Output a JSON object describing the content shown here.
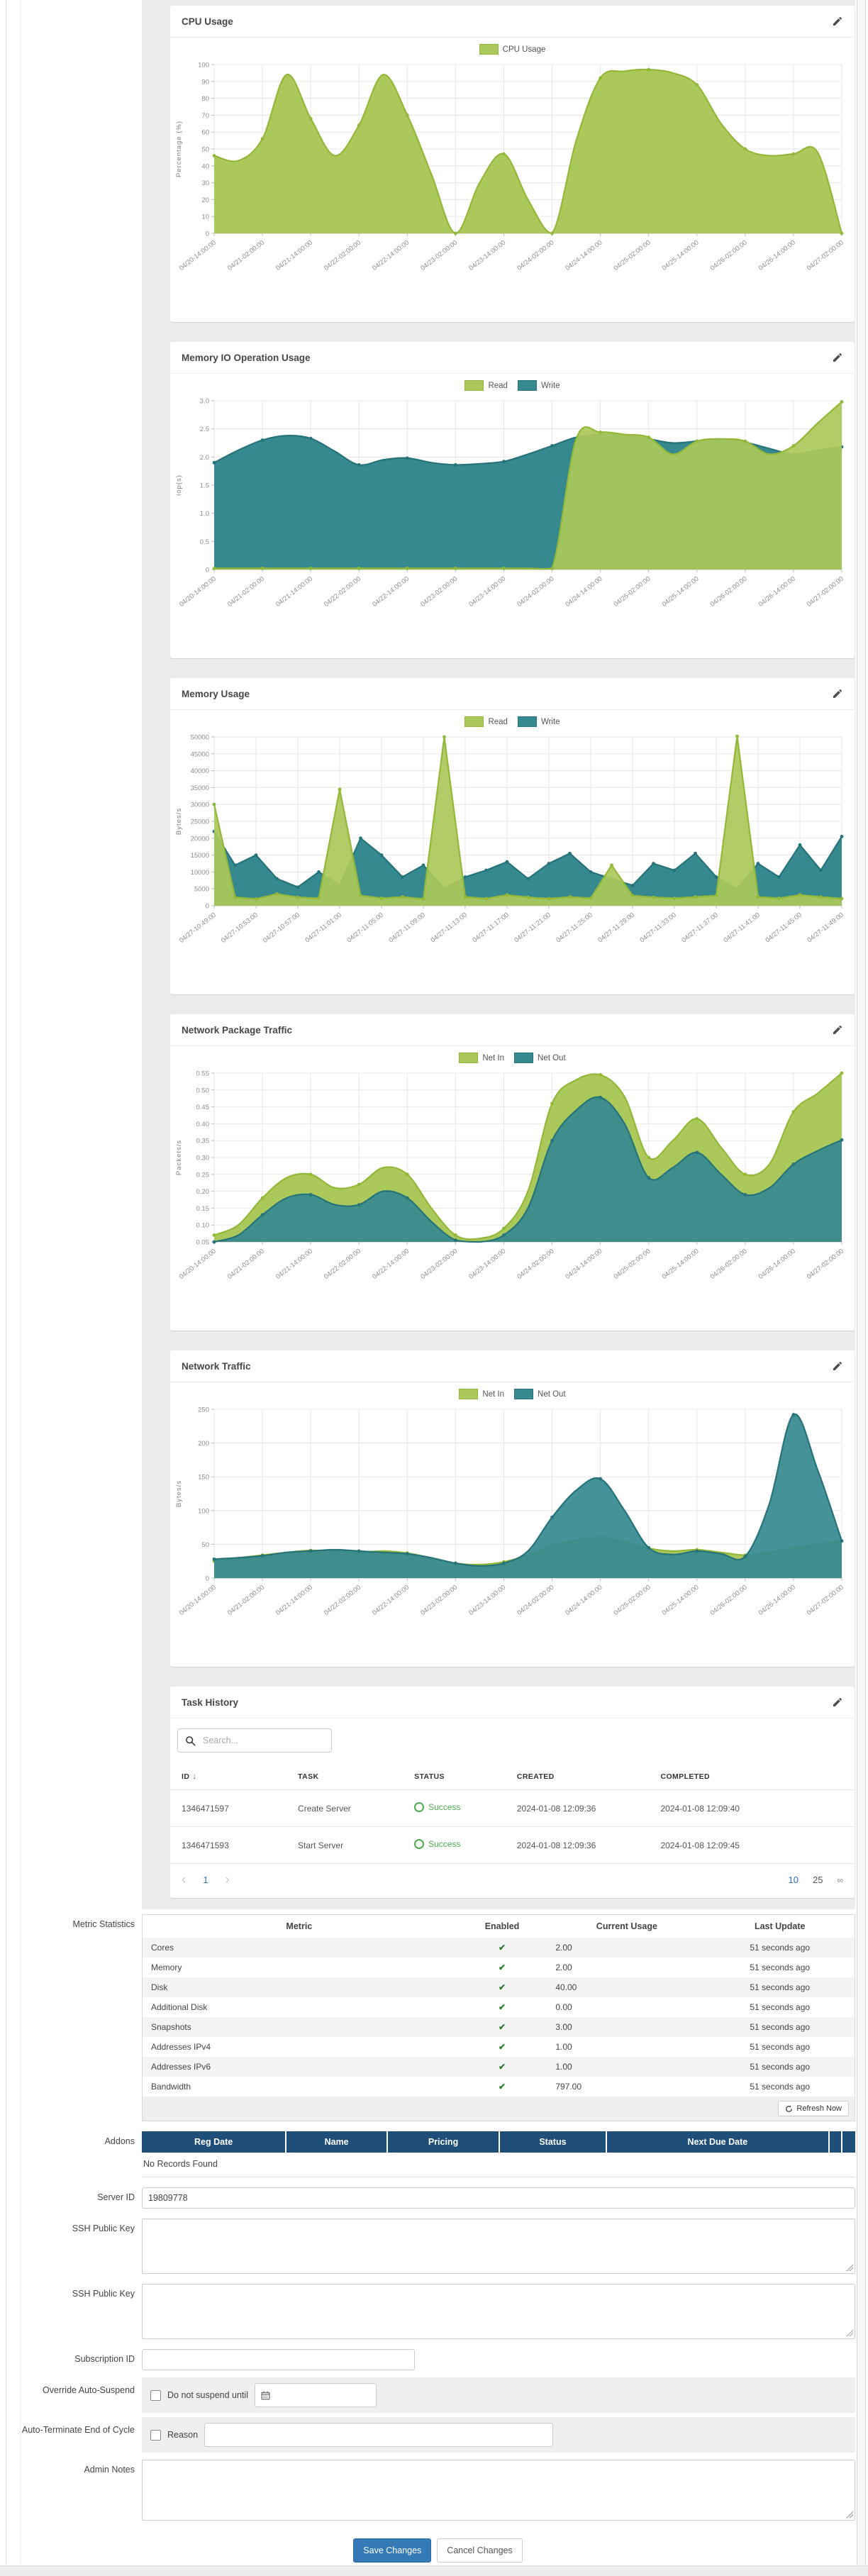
{
  "colors": {
    "green_fill": "#abc95b",
    "green_stroke": "#93b838",
    "teal_fill": "#35898f",
    "teal_stroke": "#26747a",
    "link_blue": "#2f6fc2",
    "button_blue": "#337ab7",
    "success_green": "#4cae4c",
    "addons_header_blue": "#1f4e79",
    "check_green": "#2a7d2e"
  },
  "chart_data": [
    {
      "type": "area",
      "title": "CPU Usage",
      "ylabel": "Percentage (%)",
      "ylim": [
        0,
        100
      ],
      "yticks": [
        [
          0,
          "0"
        ],
        [
          10,
          "10"
        ],
        [
          20,
          "20"
        ],
        [
          30,
          "30"
        ],
        [
          40,
          "40"
        ],
        [
          50,
          "50"
        ],
        [
          60,
          "60"
        ],
        [
          70,
          "70"
        ],
        [
          80,
          "80"
        ],
        [
          90,
          "90"
        ],
        [
          100,
          "100"
        ]
      ],
      "categories": [
        "04/20-14:00:00",
        "04/21-02:00:00",
        "04/21-14:00:00",
        "04/22-02:00:00",
        "04/22-14:00:00",
        "04/23-02:00:00",
        "04/23-14:00:00",
        "04/24-02:00:00",
        "04/24-14:00:00",
        "04/25-02:00:00",
        "04/25-14:00:00",
        "04/26-02:00:00",
        "04/26-14:00:00",
        "04/27-02:00:00"
      ],
      "smooth": true,
      "dot_every": 2,
      "draw_order": [
        0
      ],
      "grid": true,
      "legend_position": "top",
      "series": [
        {
          "name": "CPU Usage",
          "color": "green",
          "values": [
            46,
            43,
            56,
            94,
            68,
            46,
            64,
            94,
            70,
            35,
            0,
            30,
            47,
            20,
            0,
            55,
            92,
            96,
            97,
            95,
            88,
            65,
            50,
            46,
            47,
            48,
            0
          ]
        }
      ]
    },
    {
      "type": "area",
      "title": "Memory IO Operation Usage",
      "ylabel": "iop(s)",
      "ylim": [
        0,
        3
      ],
      "yticks": [
        [
          0,
          "0"
        ],
        [
          0.5,
          "0.5"
        ],
        [
          1,
          "1.0"
        ],
        [
          1.5,
          "1.5"
        ],
        [
          2,
          "2.0"
        ],
        [
          2.5,
          "2.5"
        ],
        [
          3,
          "3.0"
        ]
      ],
      "categories": [
        "04/20-14:00:00",
        "04/21-02:00:00",
        "04/21-14:00:00",
        "04/22-02:00:00",
        "04/22-14:00:00",
        "04/23-02:00:00",
        "04/23-14:00:00",
        "04/24-02:00:00",
        "04/24-14:00:00",
        "04/25-02:00:00",
        "04/25-14:00:00",
        "04/26-02:00:00",
        "04/26-14:00:00",
        "04/27-02:00:00"
      ],
      "smooth": true,
      "dot_every": 2,
      "draw_order": [
        1,
        0
      ],
      "grid": true,
      "legend_position": "top",
      "series": [
        {
          "name": "Read",
          "color": "green",
          "values": [
            0.02,
            0.02,
            0.02,
            0.02,
            0.02,
            0.02,
            0.02,
            0.02,
            0.02,
            0.02,
            0.02,
            0.02,
            0.02,
            0.02,
            0.02,
            2.32,
            2.44,
            2.4,
            2.35,
            2.05,
            2.28,
            2.32,
            2.28,
            2.05,
            2.2,
            2.6,
            2.98
          ]
        },
        {
          "name": "Write",
          "color": "teal",
          "values": [
            1.9,
            2.12,
            2.3,
            2.38,
            2.33,
            2.1,
            1.86,
            1.95,
            1.98,
            1.9,
            1.86,
            1.88,
            1.92,
            2.05,
            2.2,
            2.35,
            2.4,
            2.38,
            2.32,
            2.25,
            2.28,
            2.3,
            2.26,
            2.15,
            2.05,
            2.12,
            2.18
          ]
        }
      ]
    },
    {
      "type": "area",
      "title": "Memory Usage",
      "ylabel": "Bytes/s",
      "ylim": [
        0,
        50000
      ],
      "yticks": [
        [
          0,
          "0"
        ],
        [
          5000,
          "5000"
        ],
        [
          10000,
          "10000"
        ],
        [
          15000,
          "15000"
        ],
        [
          20000,
          "20000"
        ],
        [
          25000,
          "25000"
        ],
        [
          30000,
          "30000"
        ],
        [
          35000,
          "35000"
        ],
        [
          40000,
          "40000"
        ],
        [
          45000,
          "45000"
        ],
        [
          50000,
          "50000"
        ]
      ],
      "categories": [
        "04/27-10:49:00",
        "04/27-10:53:00",
        "04/27-10:57:00",
        "04/27-11:01:00",
        "04/27-11:05:00",
        "04/27-11:09:00",
        "04/27-11:13:00",
        "04/27-11:17:00",
        "04/27-11:21:00",
        "04/27-11:25:00",
        "04/27-11:29:00",
        "04/27-11:33:00",
        "04/27-11:37:00",
        "04/27-11:41:00",
        "04/27-11:45:00",
        "04/27-11:49:00"
      ],
      "smooth": false,
      "dot_every": 1,
      "draw_order": [
        1,
        0
      ],
      "grid": true,
      "legend_position": "top",
      "series": [
        {
          "name": "Read",
          "color": "green",
          "values": [
            30000,
            2500,
            2000,
            3500,
            2500,
            2200,
            34500,
            3000,
            2200,
            2600,
            2000,
            50000,
            2600,
            2100,
            3200,
            2500,
            2100,
            2600,
            2200,
            12000,
            3000,
            2500,
            2200,
            2600,
            3000,
            50200,
            2600,
            2200,
            3200,
            2600,
            2100
          ]
        },
        {
          "name": "Write",
          "color": "teal",
          "values": [
            22000,
            12000,
            15000,
            8000,
            5500,
            10000,
            6000,
            20000,
            15000,
            8500,
            12000,
            5000,
            8500,
            10500,
            13000,
            8000,
            12500,
            15500,
            10000,
            8000,
            6000,
            12500,
            10500,
            15500,
            8500,
            5000,
            12500,
            8500,
            18000,
            10500,
            20500
          ]
        }
      ]
    },
    {
      "type": "area",
      "title": "Network Package Traffic",
      "ylabel": "Packets/s",
      "ylim": [
        0.05,
        0.55
      ],
      "yticks": [
        [
          0.05,
          "0.05"
        ],
        [
          0.1,
          "0.10"
        ],
        [
          0.15,
          "0.15"
        ],
        [
          0.2,
          "0.20"
        ],
        [
          0.25,
          "0.25"
        ],
        [
          0.3,
          "0.30"
        ],
        [
          0.35,
          "0.35"
        ],
        [
          0.4,
          "0.40"
        ],
        [
          0.45,
          "0.45"
        ],
        [
          0.5,
          "0.50"
        ],
        [
          0.55,
          "0.55"
        ]
      ],
      "categories": [
        "04/20-14:00:00",
        "04/21-02:00:00",
        "04/21-14:00:00",
        "04/22-02:00:00",
        "04/22-14:00:00",
        "04/23-02:00:00",
        "04/23-14:00:00",
        "04/24-02:00:00",
        "04/24-14:00:00",
        "04/25-02:00:00",
        "04/25-14:00:00",
        "04/26-02:00:00",
        "04/26-14:00:00",
        "04/27-02:00:00"
      ],
      "smooth": true,
      "dot_every": 2,
      "draw_order": [
        0,
        1
      ],
      "grid": true,
      "legend_position": "top",
      "series": [
        {
          "name": "Net In",
          "color": "green",
          "values": [
            0.07,
            0.1,
            0.18,
            0.24,
            0.25,
            0.21,
            0.22,
            0.27,
            0.25,
            0.15,
            0.07,
            0.06,
            0.09,
            0.2,
            0.46,
            0.53,
            0.545,
            0.48,
            0.3,
            0.35,
            0.415,
            0.33,
            0.25,
            0.28,
            0.435,
            0.49,
            0.55
          ]
        },
        {
          "name": "Net Out",
          "color": "teal",
          "values": [
            0.05,
            0.07,
            0.13,
            0.18,
            0.19,
            0.16,
            0.16,
            0.2,
            0.18,
            0.11,
            0.055,
            0.05,
            0.07,
            0.15,
            0.35,
            0.44,
            0.478,
            0.4,
            0.24,
            0.27,
            0.315,
            0.25,
            0.19,
            0.21,
            0.28,
            0.32,
            0.352
          ]
        }
      ]
    },
    {
      "type": "area",
      "title": "Network Traffic",
      "ylabel": "Bytes/s",
      "ylim": [
        0,
        250
      ],
      "yticks": [
        [
          0,
          "0"
        ],
        [
          50,
          "50"
        ],
        [
          100,
          "100"
        ],
        [
          150,
          "150"
        ],
        [
          200,
          "200"
        ],
        [
          250,
          "250"
        ]
      ],
      "categories": [
        "04/20-14:00:00",
        "04/21-02:00:00",
        "04/21-14:00:00",
        "04/22-02:00:00",
        "04/22-14:00:00",
        "04/23-02:00:00",
        "04/23-14:00:00",
        "04/24-02:00:00",
        "04/24-14:00:00",
        "04/25-02:00:00",
        "04/25-14:00:00",
        "04/26-02:00:00",
        "04/26-14:00:00",
        "04/27-02:00:00"
      ],
      "smooth": true,
      "dot_every": 2,
      "draw_order": [
        0,
        1
      ],
      "grid": true,
      "legend_position": "top",
      "series": [
        {
          "name": "Net In",
          "color": "green",
          "values": [
            25,
            30,
            34,
            38,
            41,
            40,
            38,
            40,
            37,
            30,
            22,
            20,
            24,
            34,
            48,
            56,
            60,
            54,
            44,
            40,
            42,
            38,
            34,
            38,
            44,
            50,
            55
          ]
        },
        {
          "name": "Net Out",
          "color": "teal",
          "values": [
            28,
            30,
            33,
            38,
            40,
            42,
            40,
            38,
            36,
            30,
            22,
            18,
            22,
            40,
            90,
            130,
            147,
            100,
            45,
            35,
            40,
            36,
            32,
            110,
            242,
            160,
            55
          ]
        }
      ]
    }
  ],
  "task_history": {
    "title": "Task History",
    "search_placeholder": "Search...",
    "columns": [
      "ID",
      "TASK",
      "STATUS",
      "CREATED",
      "COMPLETED"
    ],
    "sort_arrow": "↓",
    "rows": [
      {
        "id": "1346471597",
        "task": "Create Server",
        "status": "Success",
        "created": "2024-01-08 12:09:36",
        "completed": "2024-01-08 12:09:40"
      },
      {
        "id": "1346471593",
        "task": "Start Server",
        "status": "Success",
        "created": "2024-01-08 12:09:36",
        "completed": "2024-01-08 12:09:45"
      }
    ],
    "pagination": {
      "prev": "‹",
      "page": "1",
      "next": "›",
      "page_sizes": [
        "10",
        "25"
      ],
      "active_size": "10",
      "all_symbol": "∞"
    }
  },
  "metric_statistics": {
    "label": "Metric Statistics",
    "columns": [
      "Metric",
      "Enabled",
      "Current Usage",
      "Last Update"
    ],
    "check_mark": "✔",
    "rows": [
      {
        "metric": "Cores",
        "enabled": true,
        "usage": "2.00",
        "last_update": "51 seconds ago"
      },
      {
        "metric": "Memory",
        "enabled": true,
        "usage": "2.00",
        "last_update": "51 seconds ago"
      },
      {
        "metric": "Disk",
        "enabled": true,
        "usage": "40.00",
        "last_update": "51 seconds ago"
      },
      {
        "metric": "Additional Disk",
        "enabled": true,
        "usage": "0.00",
        "last_update": "51 seconds ago"
      },
      {
        "metric": "Snapshots",
        "enabled": true,
        "usage": "3.00",
        "last_update": "51 seconds ago"
      },
      {
        "metric": "Addresses IPv4",
        "enabled": true,
        "usage": "1.00",
        "last_update": "51 seconds ago"
      },
      {
        "metric": "Addresses IPv6",
        "enabled": true,
        "usage": "1.00",
        "last_update": "51 seconds ago"
      },
      {
        "metric": "Bandwidth",
        "enabled": true,
        "usage": "797.00",
        "last_update": "51 seconds ago"
      }
    ],
    "refresh_label": "Refresh Now"
  },
  "addons": {
    "label": "Addons",
    "columns": [
      "Reg Date",
      "Name",
      "Pricing",
      "Status",
      "Next Due Date",
      "",
      ""
    ],
    "empty_text": "No Records Found"
  },
  "form": {
    "server_id": {
      "label": "Server ID",
      "value": "19809778"
    },
    "ssh_key_1": {
      "label": "SSH Public Key",
      "value": ""
    },
    "ssh_key_2": {
      "label": "SSH Public Key",
      "value": ""
    },
    "subscription_id": {
      "label": "Subscription ID",
      "value": ""
    },
    "override_auto_suspend": {
      "label": "Override Auto-Suspend",
      "checkbox_label": "Do not suspend until",
      "checked": false,
      "date_value": ""
    },
    "auto_terminate": {
      "label": "Auto-Terminate End of Cycle",
      "checkbox_label": "Reason",
      "checked": false,
      "reason_value": ""
    },
    "admin_notes": {
      "label": "Admin Notes",
      "value": ""
    }
  },
  "actions": {
    "save": "Save Changes",
    "cancel": "Cancel Changes"
  }
}
